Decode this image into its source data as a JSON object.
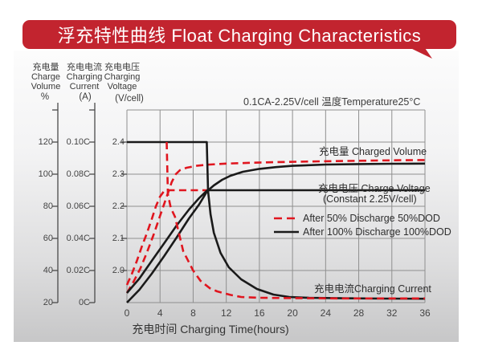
{
  "title": "浮充特性曲线 Float Charging Characteristics",
  "condition": "0.1CA-2.25V/cell  温度Temperature25°C",
  "axes": {
    "volume": {
      "title_cn": "充电量",
      "title_en1": "Charge",
      "title_en2": "Volume",
      "unit": "%",
      "ticks": [
        "120",
        "100",
        "80",
        "60",
        "40",
        "20"
      ]
    },
    "current": {
      "title_cn": "充电电流",
      "title_en1": "Charging",
      "title_en2": "Current",
      "unit": "(A)",
      "ticks": [
        "0.10C",
        "0.08C",
        "0.06C",
        "0.04C",
        "0.02C",
        "0C"
      ]
    },
    "voltage": {
      "title_cn": "充电电压",
      "title_en1": "Charging",
      "title_en2": "Voltage",
      "unit": "(V/cell)",
      "ticks": [
        "2.4",
        "2.3",
        "2.2",
        "2.1",
        "2.0"
      ]
    },
    "x": {
      "label": "充电时间 Charging Time(hours)",
      "ticks": [
        "0",
        "4",
        "8",
        "12",
        "16",
        "20",
        "24",
        "28",
        "32",
        "36"
      ]
    }
  },
  "plot_labels": {
    "charged_volume": "充电量 Charged Volume",
    "charge_voltage": "充电电压 Charge Voltage",
    "charge_voltage_sub": "(Constant 2.25V/cell)",
    "charging_current": "充电电流Charging Current"
  },
  "legend": [
    {
      "label": "After 50% Discharge 50%DOD",
      "style": "dashed",
      "color_key": "curve_red"
    },
    {
      "label": "After 100%  Discharge 100%DOD",
      "style": "solid",
      "color_key": "curve_black"
    }
  ],
  "colors": {
    "banner": "#c2242f",
    "curve_red": "#e0161f",
    "curve_black": "#1a1a1a",
    "grid": "#8f8f8f",
    "axis": "#4a4a4a"
  },
  "chart_data": {
    "type": "line",
    "title": "浮充特性曲线 Float Charging Characteristics",
    "condition": "0.1CA-2.25V/cell  温度Temperature25°C",
    "xlabel": "充电时间 Charging Time(hours)",
    "x_range": [
      0,
      36
    ],
    "x_ticks": [
      0,
      4,
      8,
      12,
      16,
      20,
      24,
      28,
      32,
      36
    ],
    "grid": true,
    "y_axes": [
      {
        "id": "volume",
        "label": "充电量 Charge Volume",
        "unit": "%",
        "ticks": [
          120,
          100,
          80,
          60,
          40,
          20
        ],
        "range": [
          20,
          130
        ]
      },
      {
        "id": "current",
        "label": "充电电流 Charging Current",
        "unit": "A",
        "ticks": [
          "0.10C",
          "0.08C",
          "0.06C",
          "0.04C",
          "0.02C",
          "0C"
        ],
        "range": [
          0,
          0.11
        ]
      },
      {
        "id": "voltage",
        "label": "充电电压 Charging Voltage",
        "unit": "V/cell",
        "ticks": [
          2.4,
          2.3,
          2.2,
          2.1,
          2.0
        ],
        "range": [
          1.9,
          2.45
        ]
      }
    ],
    "series": [
      {
        "name": "Charge Voltage after 50% Discharge (50%DOD)",
        "quantity": "voltage",
        "unit": "V/cell",
        "color_key": "curve_red",
        "dashed": true,
        "points": [
          [
            0,
            1.955
          ],
          [
            0.6,
            1.99
          ],
          [
            1.2,
            2.03
          ],
          [
            1.8,
            2.075
          ],
          [
            2.4,
            2.115
          ],
          [
            3,
            2.16
          ],
          [
            3.5,
            2.2
          ],
          [
            4,
            2.23
          ],
          [
            4.5,
            2.248
          ],
          [
            5,
            2.25
          ],
          [
            10.2,
            2.25
          ]
        ]
      },
      {
        "name": "Charged Volume after 50% Discharge (50%DOD)",
        "quantity": "volume",
        "unit": "%",
        "color_key": "curve_red",
        "dashed": true,
        "points": [
          [
            0,
            26
          ],
          [
            0.8,
            33
          ],
          [
            1.6,
            41
          ],
          [
            2.4,
            51
          ],
          [
            3.2,
            62
          ],
          [
            4,
            74
          ],
          [
            4.8,
            86
          ],
          [
            5.4,
            95
          ],
          [
            5.9,
            100
          ],
          [
            6.4,
            102.5
          ],
          [
            7.2,
            104
          ],
          [
            8.5,
            105.3
          ],
          [
            10,
            106
          ],
          [
            12,
            106.6
          ],
          [
            15,
            107.1
          ],
          [
            18,
            107.5
          ],
          [
            22,
            107.9
          ],
          [
            26,
            108.2
          ],
          [
            30,
            108.5
          ],
          [
            33,
            108.7
          ],
          [
            36,
            108.8
          ]
        ]
      },
      {
        "name": "Charge Voltage after 100% Discharge (100%DOD)",
        "quantity": "voltage",
        "unit": "V/cell",
        "color_key": "curve_black",
        "dashed": false,
        "points": [
          [
            0,
            1.93
          ],
          [
            1.5,
            1.975
          ],
          [
            3,
            2.03
          ],
          [
            4.5,
            2.085
          ],
          [
            6,
            2.14
          ],
          [
            7.5,
            2.19
          ],
          [
            8.7,
            2.225
          ],
          [
            9.7,
            2.25
          ],
          [
            36,
            2.25
          ]
        ]
      },
      {
        "name": "Charged Volume after 100% Discharge (100%DOD)",
        "quantity": "volume",
        "unit": "%",
        "color_key": "curve_black",
        "dashed": false,
        "points": [
          [
            0,
            20
          ],
          [
            1.5,
            28
          ],
          [
            3,
            38
          ],
          [
            4.5,
            49
          ],
          [
            6,
            60.5
          ],
          [
            7.5,
            72.5
          ],
          [
            8.7,
            81
          ],
          [
            9.7,
            89.5
          ],
          [
            10.5,
            93
          ],
          [
            11.5,
            96.5
          ],
          [
            12.5,
            99
          ],
          [
            14,
            101.5
          ],
          [
            16,
            103.3
          ],
          [
            18,
            104.4
          ],
          [
            20,
            105.2
          ],
          [
            24,
            106
          ],
          [
            28,
            106.3
          ],
          [
            32,
            106.5
          ],
          [
            36,
            106.6
          ]
        ]
      },
      {
        "name": "Charging Current after 100% Discharge (100%DOD)",
        "quantity": "current",
        "unit": "CA",
        "color_key": "curve_black",
        "dashed": false,
        "points": [
          [
            0,
            0.1
          ],
          [
            9.65,
            0.1
          ],
          [
            9.8,
            0.0695
          ],
          [
            10.1,
            0.055
          ],
          [
            10.5,
            0.0435
          ],
          [
            11.3,
            0.031
          ],
          [
            12.3,
            0.022
          ],
          [
            13.8,
            0.0145
          ],
          [
            15.7,
            0.0085
          ],
          [
            17.7,
            0.005
          ],
          [
            19.6,
            0.0035
          ],
          [
            22,
            0.003
          ],
          [
            26,
            0.0027
          ],
          [
            31,
            0.0025
          ],
          [
            36,
            0.0024
          ]
        ]
      },
      {
        "name": "Charging Current after 50% Discharge (50%DOD)",
        "quantity": "current",
        "unit": "CA",
        "color_key": "curve_red",
        "dashed": true,
        "points": [
          [
            4.8,
            0.1
          ],
          [
            4.95,
            0.0675
          ],
          [
            5.3,
            0.059
          ],
          [
            5.8,
            0.0535
          ],
          [
            6.8,
            0.032
          ],
          [
            7.5,
            0.025
          ],
          [
            8,
            0.02
          ],
          [
            8.9,
            0.0135
          ],
          [
            10,
            0.009
          ],
          [
            10.9,
            0.007
          ],
          [
            12.5,
            0.0048
          ],
          [
            13.8,
            0.0035
          ],
          [
            16,
            0.003
          ],
          [
            20,
            0.0028
          ],
          [
            26,
            0.0026
          ],
          [
            36,
            0.0026
          ]
        ]
      }
    ]
  }
}
